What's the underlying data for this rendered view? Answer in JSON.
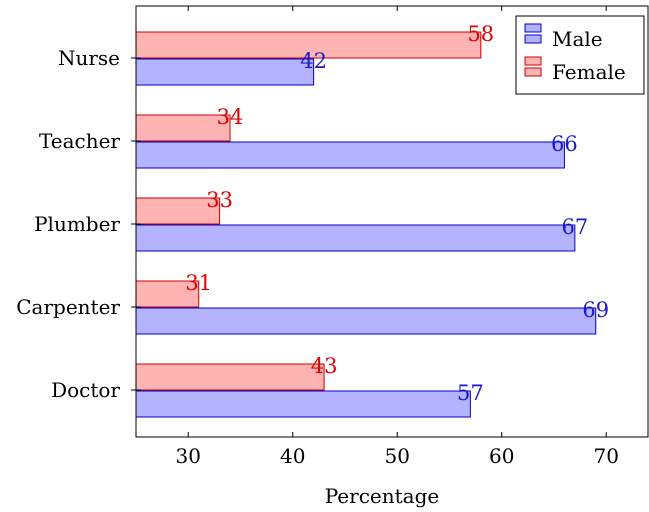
{
  "chart_data": {
    "type": "bar",
    "orientation": "horizontal",
    "categories": [
      "Nurse",
      "Teacher",
      "Plumber",
      "Carpenter",
      "Doctor"
    ],
    "series": [
      {
        "name": "Male",
        "values": [
          42,
          66,
          67,
          69,
          57
        ],
        "fill": "#b3b3ff",
        "stroke": "#0000cc",
        "label_color": "#1a1acc"
      },
      {
        "name": "Female",
        "values": [
          58,
          34,
          33,
          31,
          43
        ],
        "fill": "#ffb3b3",
        "stroke": "#cc0000",
        "label_color": "#e60000"
      }
    ],
    "xlabel": "Percentage",
    "ylabel": "",
    "title": "",
    "xlim": [
      25,
      74
    ],
    "xticks": [
      30,
      40,
      50,
      60,
      70
    ],
    "legend_position": "top-right",
    "grid": false
  }
}
